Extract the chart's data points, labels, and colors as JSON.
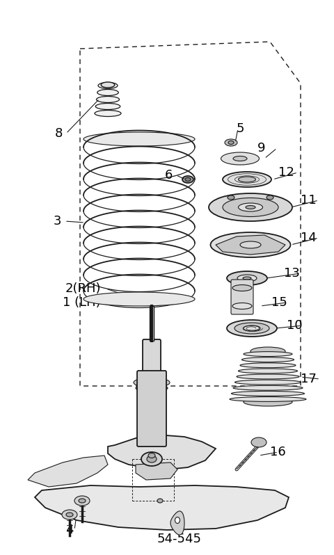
{
  "background_color": "#ffffff",
  "line_color": "#1a1a1a",
  "label_color": "#000000",
  "figw": 4.8,
  "figh": 7.98,
  "dpi": 100,
  "xlim": [
    0,
    480
  ],
  "ylim": [
    0,
    798
  ]
}
